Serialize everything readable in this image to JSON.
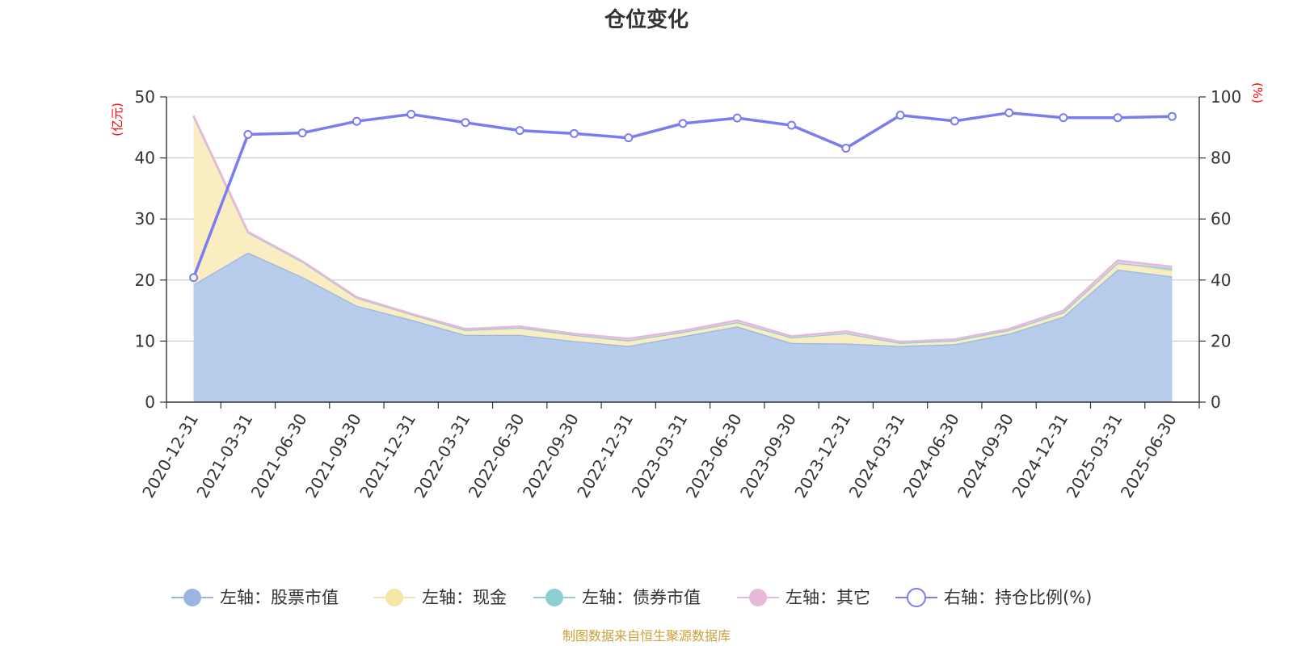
{
  "chart_data": {
    "type": "area",
    "title": "仓位变化",
    "categories": [
      "2020-12-31",
      "2021-03-31",
      "2021-06-30",
      "2021-09-30",
      "2021-12-31",
      "2022-03-31",
      "2022-06-30",
      "2022-09-30",
      "2022-12-31",
      "2023-03-31",
      "2023-06-30",
      "2023-09-30",
      "2023-12-31",
      "2024-03-31",
      "2024-06-30",
      "2024-09-30",
      "2024-12-31",
      "2025-03-31",
      "2025-06-30"
    ],
    "left_axis": {
      "unit": "(亿元)",
      "ylim": [
        0,
        50
      ],
      "ticks": [
        "0",
        "10",
        "20",
        "30",
        "40",
        "50"
      ]
    },
    "right_axis": {
      "unit": "(%)",
      "ylim": [
        0,
        100
      ],
      "ticks": [
        "0",
        "20",
        "40",
        "60",
        "80",
        "100"
      ]
    },
    "stacked_series": [
      {
        "name": "左轴：股票市值",
        "color": "#9ab6e0",
        "fill": "#b8cdeb",
        "values": [
          19.3,
          24.5,
          20.5,
          15.8,
          13.5,
          11.0,
          11.0,
          10.0,
          9.2,
          10.8,
          12.4,
          9.7,
          9.6,
          9.2,
          9.5,
          11.2,
          14.0,
          21.7,
          20.6
        ]
      },
      {
        "name": "左轴：现金",
        "color": "#f8e6a8",
        "fill": "#faedc1",
        "values": [
          27.5,
          3.3,
          2.5,
          1.3,
          0.9,
          0.8,
          1.2,
          1.0,
          0.9,
          0.7,
          0.7,
          0.9,
          1.7,
          0.5,
          0.6,
          0.6,
          0.7,
          1.1,
          0.9
        ]
      },
      {
        "name": "左轴：债券市值",
        "color": "#8ccfd3",
        "fill": "#a8dde0",
        "values": [
          0.0,
          0.0,
          0.0,
          0.0,
          0.0,
          0.0,
          0.0,
          0.0,
          0.0,
          0.0,
          0.0,
          0.0,
          0.0,
          0.0,
          0.0,
          0.0,
          0.0,
          0.0,
          0.4
        ]
      },
      {
        "name": "左轴：其它",
        "color": "#e6b8da",
        "fill": "#f0d0e8",
        "values": [
          0.1,
          0.1,
          0.1,
          0.1,
          0.1,
          0.2,
          0.2,
          0.2,
          0.3,
          0.2,
          0.3,
          0.2,
          0.3,
          0.2,
          0.2,
          0.2,
          0.3,
          0.4,
          0.3
        ]
      }
    ],
    "line_series": {
      "name": "右轴：持仓比例(%)",
      "color": "#7a7cf0",
      "values": [
        40.8,
        87.7,
        88.2,
        92.0,
        94.3,
        91.6,
        89.0,
        88.0,
        86.6,
        91.3,
        93.1,
        90.7,
        83.2,
        94.0,
        92.1,
        94.8,
        93.2,
        93.2,
        93.6
      ]
    },
    "grid": true,
    "legend_position": "bottom"
  },
  "footer": {
    "source": "制图数据来自恒生聚源数据库"
  }
}
